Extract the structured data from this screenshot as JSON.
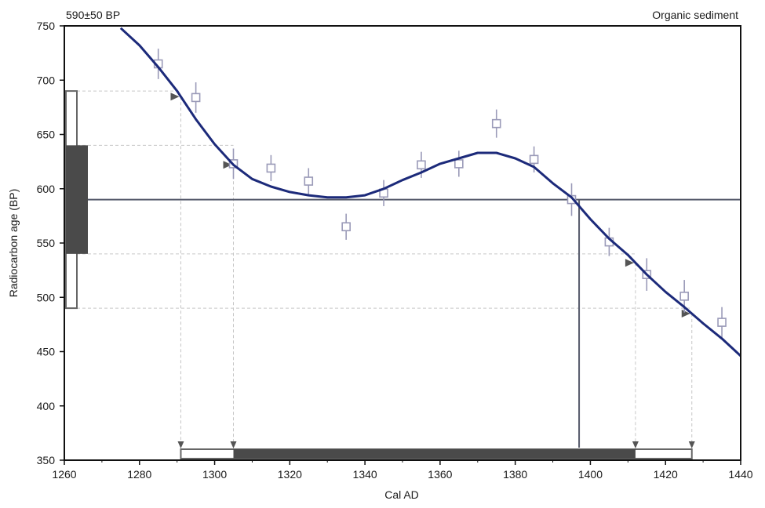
{
  "chart_data": {
    "type": "line",
    "title_left": "590±50 BP",
    "title_right": "Organic sediment",
    "xlabel": "Cal AD",
    "ylabel": "Radiocarbon age (BP)",
    "xlim": [
      1260,
      1440
    ],
    "ylim": [
      350,
      750
    ],
    "xticks": [
      1260,
      1280,
      1300,
      1320,
      1340,
      1360,
      1380,
      1400,
      1420,
      1440
    ],
    "yticks": [
      350,
      400,
      450,
      500,
      550,
      600,
      650,
      700,
      750
    ],
    "grid": false,
    "sample": {
      "age": 590,
      "sigma1": [
        540,
        640
      ],
      "sigma2": [
        490,
        690
      ]
    },
    "calibration_curve": {
      "name": "",
      "x": [
        1275,
        1280,
        1285,
        1290,
        1295,
        1300,
        1305,
        1310,
        1315,
        1320,
        1325,
        1330,
        1335,
        1340,
        1345,
        1350,
        1355,
        1360,
        1365,
        1370,
        1375,
        1380,
        1385,
        1390,
        1395,
        1400,
        1405,
        1410,
        1415,
        1420,
        1425,
        1430,
        1435,
        1440
      ],
      "y": [
        748,
        732,
        712,
        690,
        664,
        641,
        622,
        609,
        602,
        597,
        594,
        592,
        592,
        594,
        600,
        608,
        615,
        623,
        628,
        633,
        633,
        628,
        620,
        605,
        592,
        572,
        554,
        539,
        521,
        505,
        491,
        476,
        462,
        446
      ]
    },
    "data_points": {
      "x": [
        1285,
        1295,
        1305,
        1315,
        1325,
        1335,
        1345,
        1355,
        1365,
        1375,
        1385,
        1395,
        1405,
        1415,
        1425,
        1435
      ],
      "y": [
        715,
        684,
        623,
        619,
        607,
        565,
        596,
        622,
        623,
        660,
        627,
        590,
        551,
        521,
        501,
        477
      ],
      "err": [
        14,
        14,
        14,
        12,
        12,
        12,
        12,
        12,
        12,
        13,
        12,
        15,
        13,
        15,
        15,
        14
      ]
    },
    "intercepts": {
      "sigma2_range": [
        1291,
        1427
      ],
      "sigma1_range": [
        1305,
        1412
      ],
      "median_line_x": 1397,
      "curve_markers_x": [
        1291,
        1305,
        1412,
        1427
      ]
    }
  },
  "colors": {
    "curve": "#1c2a7a",
    "axis": "#111111",
    "bar_fill": "#4a4a4a",
    "bar_outline": "#666666",
    "points": "#9a9ab8",
    "dashed": "#c6c6c6"
  }
}
